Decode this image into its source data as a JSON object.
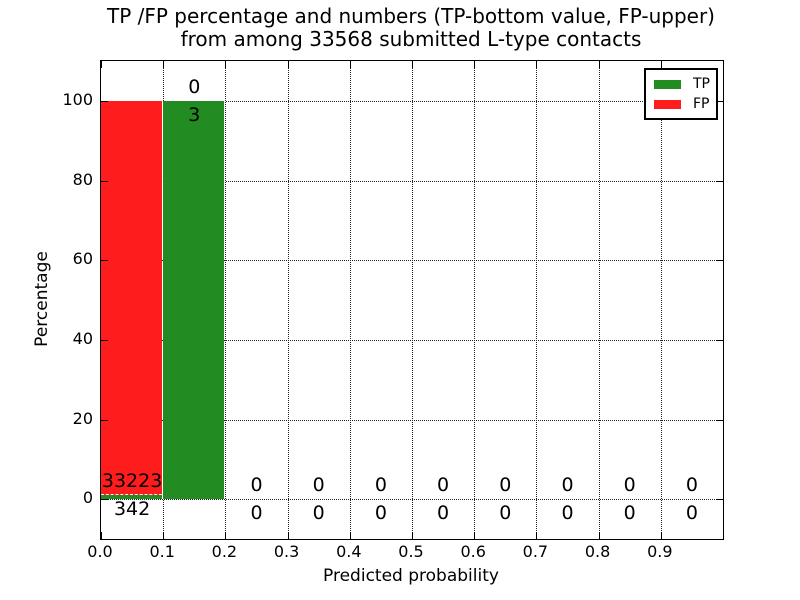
{
  "figure": {
    "title_line1": "TP /FP percentage and numbers (TP-bottom value, FP-upper)",
    "title_line2": "from among 33568 submitted L-type contacts"
  },
  "chart_data": {
    "type": "bar",
    "title": "TP /FP percentage and numbers (TP-bottom value, FP-upper) from among 33568 submitted L-type contacts",
    "xlabel": "Predicted probability",
    "ylabel": "Percentage",
    "xlim": [
      0.0,
      1.0
    ],
    "ylim": [
      -10,
      110
    ],
    "grid": "dotted",
    "legend_position": "upper right",
    "bar_style": "stacked, bin width 0.1, TP segment at bottom, FP above",
    "bin_edges": [
      0.0,
      0.1,
      0.2,
      0.3,
      0.4,
      0.5,
      0.6,
      0.7,
      0.8,
      0.9,
      1.0
    ],
    "xticks": [
      "0.0",
      "0.1",
      "0.2",
      "0.3",
      "0.4",
      "0.5",
      "0.6",
      "0.7",
      "0.8",
      "0.9"
    ],
    "yticks": [
      "0",
      "20",
      "40",
      "60",
      "80",
      "100"
    ],
    "series": [
      {
        "name": "TP",
        "color": "#228b22",
        "counts": [
          342,
          3,
          0,
          0,
          0,
          0,
          0,
          0,
          0,
          0
        ],
        "pct": [
          1.02,
          100,
          0,
          0,
          0,
          0,
          0,
          0,
          0,
          0
        ]
      },
      {
        "name": "FP",
        "color": "#ff1c1c",
        "counts": [
          33223,
          0,
          0,
          0,
          0,
          0,
          0,
          0,
          0,
          0
        ],
        "pct": [
          98.98,
          0,
          0,
          0,
          0,
          0,
          0,
          0,
          0,
          0
        ]
      }
    ]
  }
}
